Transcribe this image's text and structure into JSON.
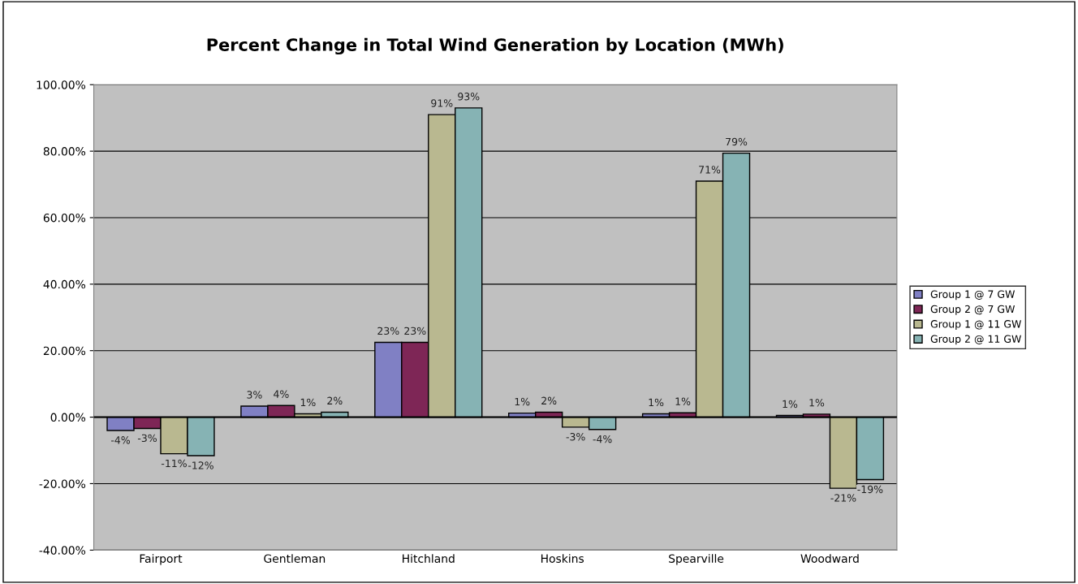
{
  "chart_data": {
    "type": "bar",
    "title": "Percent Change in Total Wind Generation by Location (MWh)",
    "categories": [
      "Fairport",
      "Gentleman",
      "Hitchland",
      "Hoskins",
      "Spearville",
      "Woodward"
    ],
    "series": [
      {
        "name": "Group 1 @ 7 GW",
        "color": "#8080c4",
        "values": [
          -4,
          3.3,
          22.5,
          1.2,
          1.0,
          0.5
        ],
        "value_labels": [
          "-4%",
          "3%",
          "23%",
          "1%",
          "1%",
          "1%"
        ]
      },
      {
        "name": "Group 2 @ 7 GW",
        "color": "#7e2656",
        "values": [
          -3.4,
          3.5,
          22.5,
          1.5,
          1.3,
          0.9
        ],
        "value_labels": [
          "-3%",
          "4%",
          "23%",
          "2%",
          "1%",
          "1%"
        ]
      },
      {
        "name": "Group 1 @ 11 GW",
        "color": "#b9b890",
        "values": [
          -11,
          1.0,
          91,
          -3,
          71,
          -21.4
        ],
        "value_labels": [
          "-11%",
          "1%",
          "91%",
          "-3%",
          "71%",
          "-21%"
        ]
      },
      {
        "name": "Group 2 @ 11 GW",
        "color": "#86b3b4",
        "values": [
          -11.6,
          1.5,
          93,
          -3.7,
          79.4,
          -18.8
        ],
        "value_labels": [
          "-12%",
          "2%",
          "93%",
          "-4%",
          "79%",
          "-19%"
        ]
      }
    ],
    "ylim": [
      -40,
      100
    ],
    "yticks": [
      {
        "value": -40,
        "label": "-40.00%"
      },
      {
        "value": -20,
        "label": "-20.00%"
      },
      {
        "value": 0,
        "label": "0.00%"
      },
      {
        "value": 20,
        "label": "20.00%"
      },
      {
        "value": 40,
        "label": "40.00%"
      },
      {
        "value": 60,
        "label": "60.00%"
      },
      {
        "value": 80,
        "label": "80.00%"
      },
      {
        "value": 100,
        "label": "100.00%"
      }
    ],
    "grid": "y",
    "legend": "right"
  }
}
